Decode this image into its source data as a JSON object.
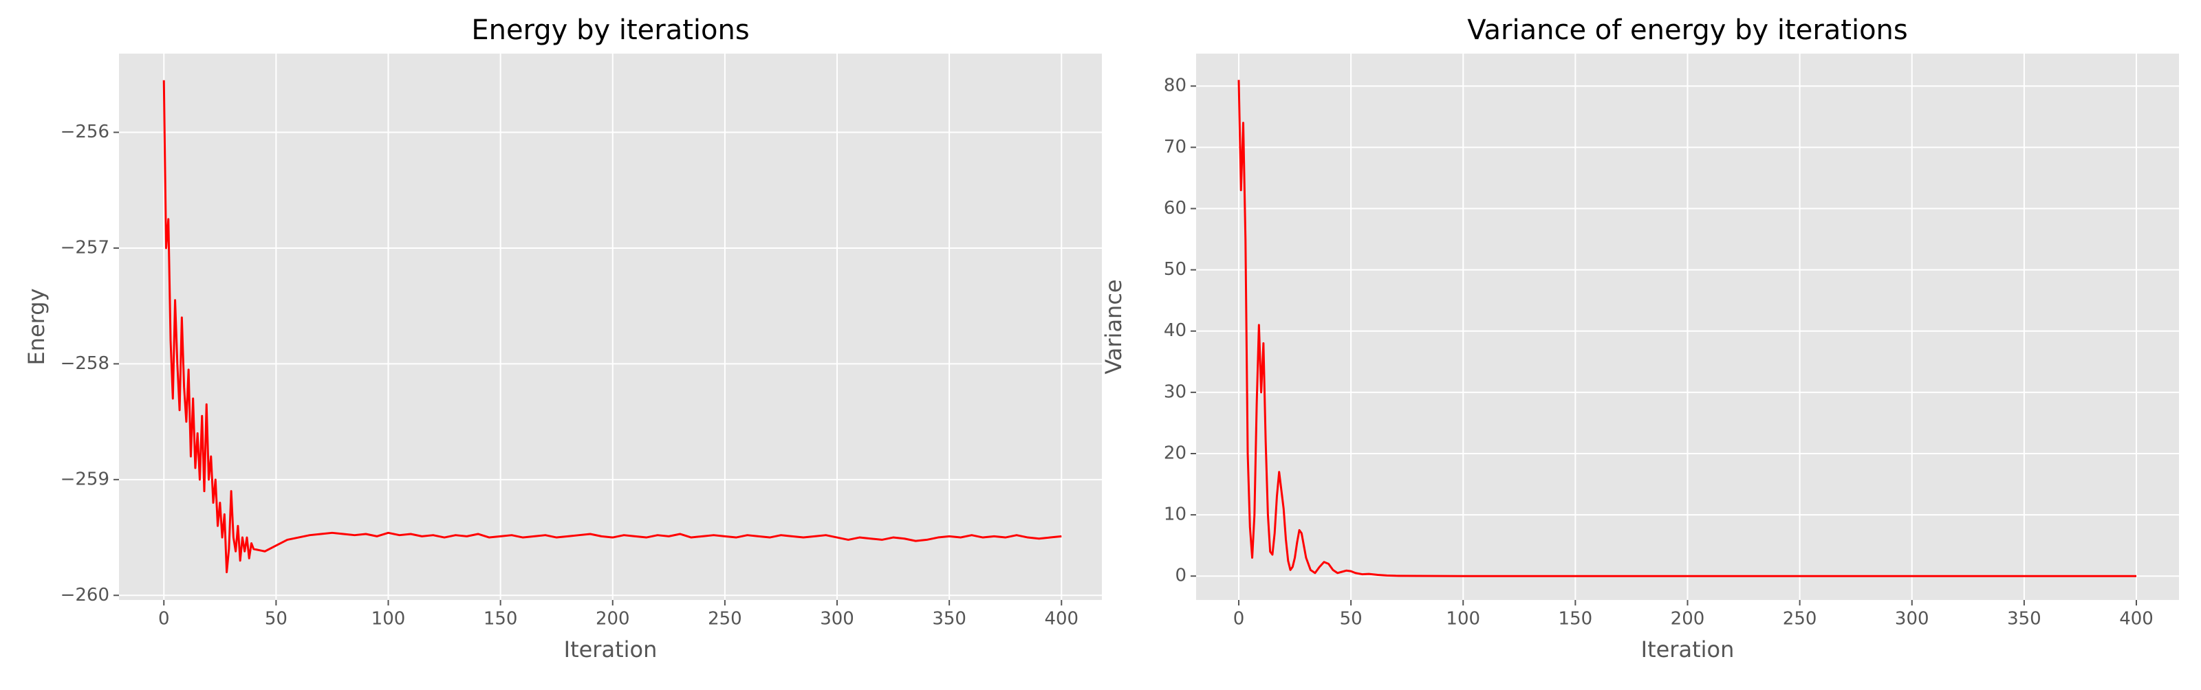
{
  "chart_data": [
    {
      "type": "line",
      "title": "Energy by iterations",
      "x_label": "Iteration",
      "y_label": "Energy",
      "color": "#ff0000",
      "grid": true,
      "xlim": [
        -20,
        418
      ],
      "xticks": [
        0,
        50,
        100,
        150,
        200,
        250,
        300,
        350,
        400
      ],
      "ylim": [
        -260.04,
        -255.32
      ],
      "yticks": [
        {
          "value": -260,
          "label": "−260"
        },
        {
          "value": -259,
          "label": "−259"
        },
        {
          "value": -258,
          "label": "−258"
        },
        {
          "value": -257,
          "label": "−257"
        },
        {
          "value": -256,
          "label": "−256"
        }
      ],
      "x": [
        0,
        1,
        2,
        3,
        4,
        5,
        6,
        7,
        8,
        9,
        10,
        11,
        12,
        13,
        14,
        15,
        16,
        17,
        18,
        19,
        20,
        21,
        22,
        23,
        24,
        25,
        26,
        27,
        28,
        29,
        30,
        31,
        32,
        33,
        34,
        35,
        36,
        37,
        38,
        39,
        40,
        45,
        50,
        55,
        60,
        65,
        70,
        75,
        80,
        85,
        90,
        95,
        100,
        105,
        110,
        115,
        120,
        125,
        130,
        135,
        140,
        145,
        150,
        155,
        160,
        165,
        170,
        175,
        180,
        185,
        190,
        195,
        200,
        205,
        210,
        215,
        220,
        225,
        230,
        235,
        240,
        245,
        250,
        255,
        260,
        265,
        270,
        275,
        280,
        285,
        290,
        295,
        300,
        305,
        310,
        315,
        320,
        325,
        330,
        335,
        340,
        345,
        350,
        355,
        360,
        365,
        370,
        375,
        380,
        385,
        390,
        395,
        400
      ],
      "values": [
        -255.55,
        -257.0,
        -256.75,
        -257.8,
        -258.3,
        -257.45,
        -258.0,
        -258.4,
        -257.6,
        -258.2,
        -258.5,
        -258.05,
        -258.8,
        -258.3,
        -258.9,
        -258.6,
        -259.0,
        -258.45,
        -259.1,
        -258.35,
        -259.0,
        -258.8,
        -259.2,
        -259.0,
        -259.4,
        -259.2,
        -259.5,
        -259.3,
        -259.8,
        -259.6,
        -259.1,
        -259.5,
        -259.62,
        -259.4,
        -259.7,
        -259.5,
        -259.62,
        -259.5,
        -259.68,
        -259.55,
        -259.6,
        -259.62,
        -259.57,
        -259.52,
        -259.5,
        -259.48,
        -259.47,
        -259.46,
        -259.47,
        -259.48,
        -259.47,
        -259.49,
        -259.46,
        -259.48,
        -259.47,
        -259.49,
        -259.48,
        -259.5,
        -259.48,
        -259.49,
        -259.47,
        -259.5,
        -259.49,
        -259.48,
        -259.5,
        -259.49,
        -259.48,
        -259.5,
        -259.49,
        -259.48,
        -259.47,
        -259.49,
        -259.5,
        -259.48,
        -259.49,
        -259.5,
        -259.48,
        -259.49,
        -259.47,
        -259.5,
        -259.49,
        -259.48,
        -259.49,
        -259.5,
        -259.48,
        -259.49,
        -259.5,
        -259.48,
        -259.49,
        -259.5,
        -259.49,
        -259.48,
        -259.5,
        -259.52,
        -259.5,
        -259.51,
        -259.52,
        -259.5,
        -259.51,
        -259.53,
        -259.52,
        -259.5,
        -259.49,
        -259.5,
        -259.48,
        -259.5,
        -259.49,
        -259.5,
        -259.48,
        -259.5,
        -259.51,
        -259.5,
        -259.49
      ]
    },
    {
      "type": "line",
      "title": "Variance of energy by iterations",
      "x_label": "Iteration",
      "y_label": "Variance",
      "color": "#ff0000",
      "grid": true,
      "xlim": [
        -19,
        419
      ],
      "xticks": [
        0,
        50,
        100,
        150,
        200,
        250,
        300,
        350,
        400
      ],
      "ylim": [
        -3.9,
        85.3
      ],
      "yticks": [
        0,
        10,
        20,
        30,
        40,
        50,
        60,
        70,
        80
      ],
      "x": [
        0,
        1,
        2,
        3,
        4,
        5,
        6,
        7,
        8,
        9,
        10,
        11,
        12,
        13,
        14,
        15,
        16,
        17,
        18,
        19,
        20,
        21,
        22,
        23,
        24,
        25,
        26,
        27,
        28,
        29,
        30,
        32,
        34,
        36,
        38,
        40,
        42,
        44,
        46,
        48,
        50,
        52,
        55,
        58,
        62,
        66,
        70,
        80,
        100,
        150,
        200,
        250,
        300,
        350,
        400
      ],
      "values": [
        81,
        63,
        74,
        55,
        20,
        8,
        3,
        10,
        28,
        41,
        30,
        38,
        22,
        10,
        4,
        3.5,
        7,
        13,
        17,
        14,
        11,
        6,
        2.5,
        1,
        1.5,
        3,
        5.5,
        7.5,
        7,
        5,
        3,
        1,
        0.5,
        1.5,
        2.3,
        2,
        1,
        0.5,
        0.7,
        0.9,
        0.8,
        0.5,
        0.3,
        0.35,
        0.2,
        0.1,
        0.05,
        0.02,
        0,
        0,
        0,
        0,
        0,
        0,
        0
      ]
    }
  ]
}
